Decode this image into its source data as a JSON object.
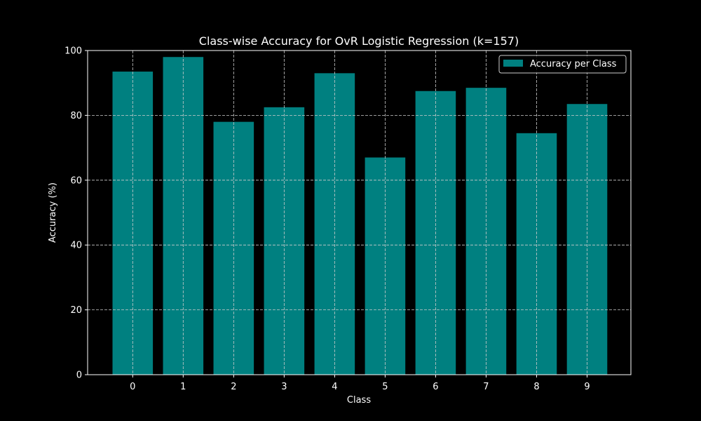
{
  "chart_data": {
    "type": "bar",
    "title": "Class-wise Accuracy for OvR Logistic Regression (k=157)",
    "xlabel": "Class",
    "ylabel": "Accuracy (%)",
    "categories": [
      "0",
      "1",
      "2",
      "3",
      "4",
      "5",
      "6",
      "7",
      "8",
      "9"
    ],
    "series": [
      {
        "name": "Accuracy per Class",
        "values": [
          93.5,
          98.0,
          78.0,
          82.5,
          93.0,
          67.0,
          87.5,
          88.5,
          74.5,
          83.5
        ]
      }
    ],
    "ylim": [
      0,
      100
    ],
    "yticks": [
      "0",
      "20",
      "40",
      "60",
      "80",
      "100"
    ],
    "grid": true,
    "legend_position": "top-right",
    "colors": {
      "background": "#000000",
      "bar": "#008080",
      "text": "#ffffff",
      "grid": "#cccccc"
    }
  }
}
